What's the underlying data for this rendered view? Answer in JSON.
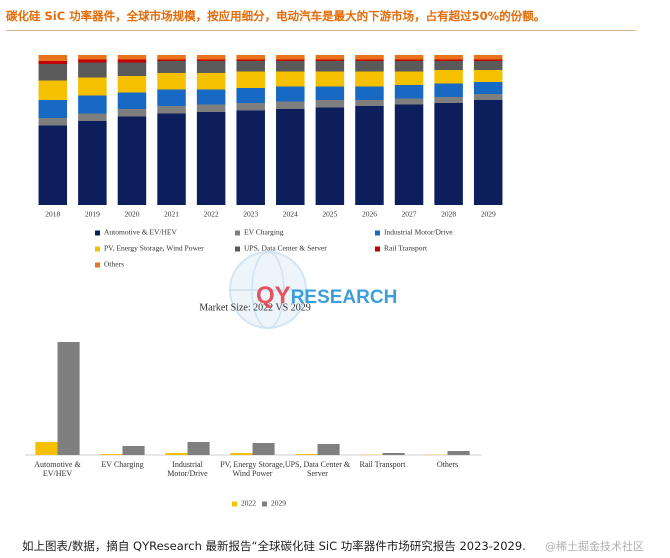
{
  "header": {
    "title": "碳化硅 SiC 功率器件，全球市场规模，按应用细分，电动汽车是最大的下游市场，占有超过50%的份额。"
  },
  "caption": "如上图表/数据，摘自 QYResearch 最新报告“全球碳化硅 SiC 功率器件市场研究报告 2023-2029.",
  "watermark": {
    "logo_left": "QY",
    "logo_right": "RESEARCH",
    "text": "@稀土掘金技术社区"
  },
  "chart_data": [
    {
      "type": "stacked-bar",
      "categories": [
        "2018",
        "2019",
        "2020",
        "2021",
        "2022",
        "2023",
        "2024",
        "2025",
        "2026",
        "2027",
        "2028",
        "2029"
      ],
      "ylim": [
        0,
        100
      ],
      "series": [
        {
          "name": "Automotive & EV/HEV",
          "color": "#0c1f5c",
          "values": [
            53,
            56,
            59,
            61,
            62,
            63,
            64,
            65,
            66,
            67,
            68,
            70
          ]
        },
        {
          "name": "EV Charging",
          "color": "#7f7f7f",
          "values": [
            5,
            5,
            5,
            5,
            5,
            5,
            5,
            5,
            4,
            4,
            4,
            4
          ]
        },
        {
          "name": "Industrial Motor/Drive",
          "color": "#1769c4",
          "values": [
            12,
            12,
            11,
            11,
            10,
            10,
            10,
            9,
            9,
            9,
            9,
            8
          ]
        },
        {
          "name": "PV, Energy Storage, Wind Power",
          "color": "#f5c000",
          "values": [
            13,
            12,
            11,
            11,
            11,
            11,
            10,
            10,
            10,
            9,
            9,
            8
          ]
        },
        {
          "name": "UPS, Data Center & Server",
          "color": "#5a5a5a",
          "values": [
            11,
            10,
            9,
            8,
            8,
            7,
            7,
            7,
            7,
            7,
            6,
            6
          ]
        },
        {
          "name": "Rail Transport",
          "color": "#c00000",
          "values": [
            2,
            2,
            2,
            1,
            1,
            1,
            1,
            1,
            1,
            1,
            1,
            1
          ]
        },
        {
          "name": "Others",
          "color": "#e8731c",
          "values": [
            4,
            3,
            3,
            3,
            3,
            3,
            3,
            3,
            3,
            3,
            3,
            3
          ]
        }
      ]
    },
    {
      "type": "bar",
      "title": "Market Size: 2022 VS 2029",
      "categories": [
        "Automotive & EV/HEV",
        "EV Charging",
        "Industrial Motor/Drive",
        "PV, Energy Storage, Wind Power",
        "UPS, Data Center & Server",
        "Rail Transport",
        "Others"
      ],
      "ylim": [
        0,
        120
      ],
      "series": [
        {
          "name": "2022",
          "color": "#f5c000",
          "values": [
            13,
            1,
            2,
            2,
            1,
            0.3,
            0.3
          ]
        },
        {
          "name": "2029",
          "color": "#7f7f7f",
          "values": [
            113,
            9,
            13,
            12,
            11,
            2,
            4
          ]
        }
      ]
    }
  ]
}
